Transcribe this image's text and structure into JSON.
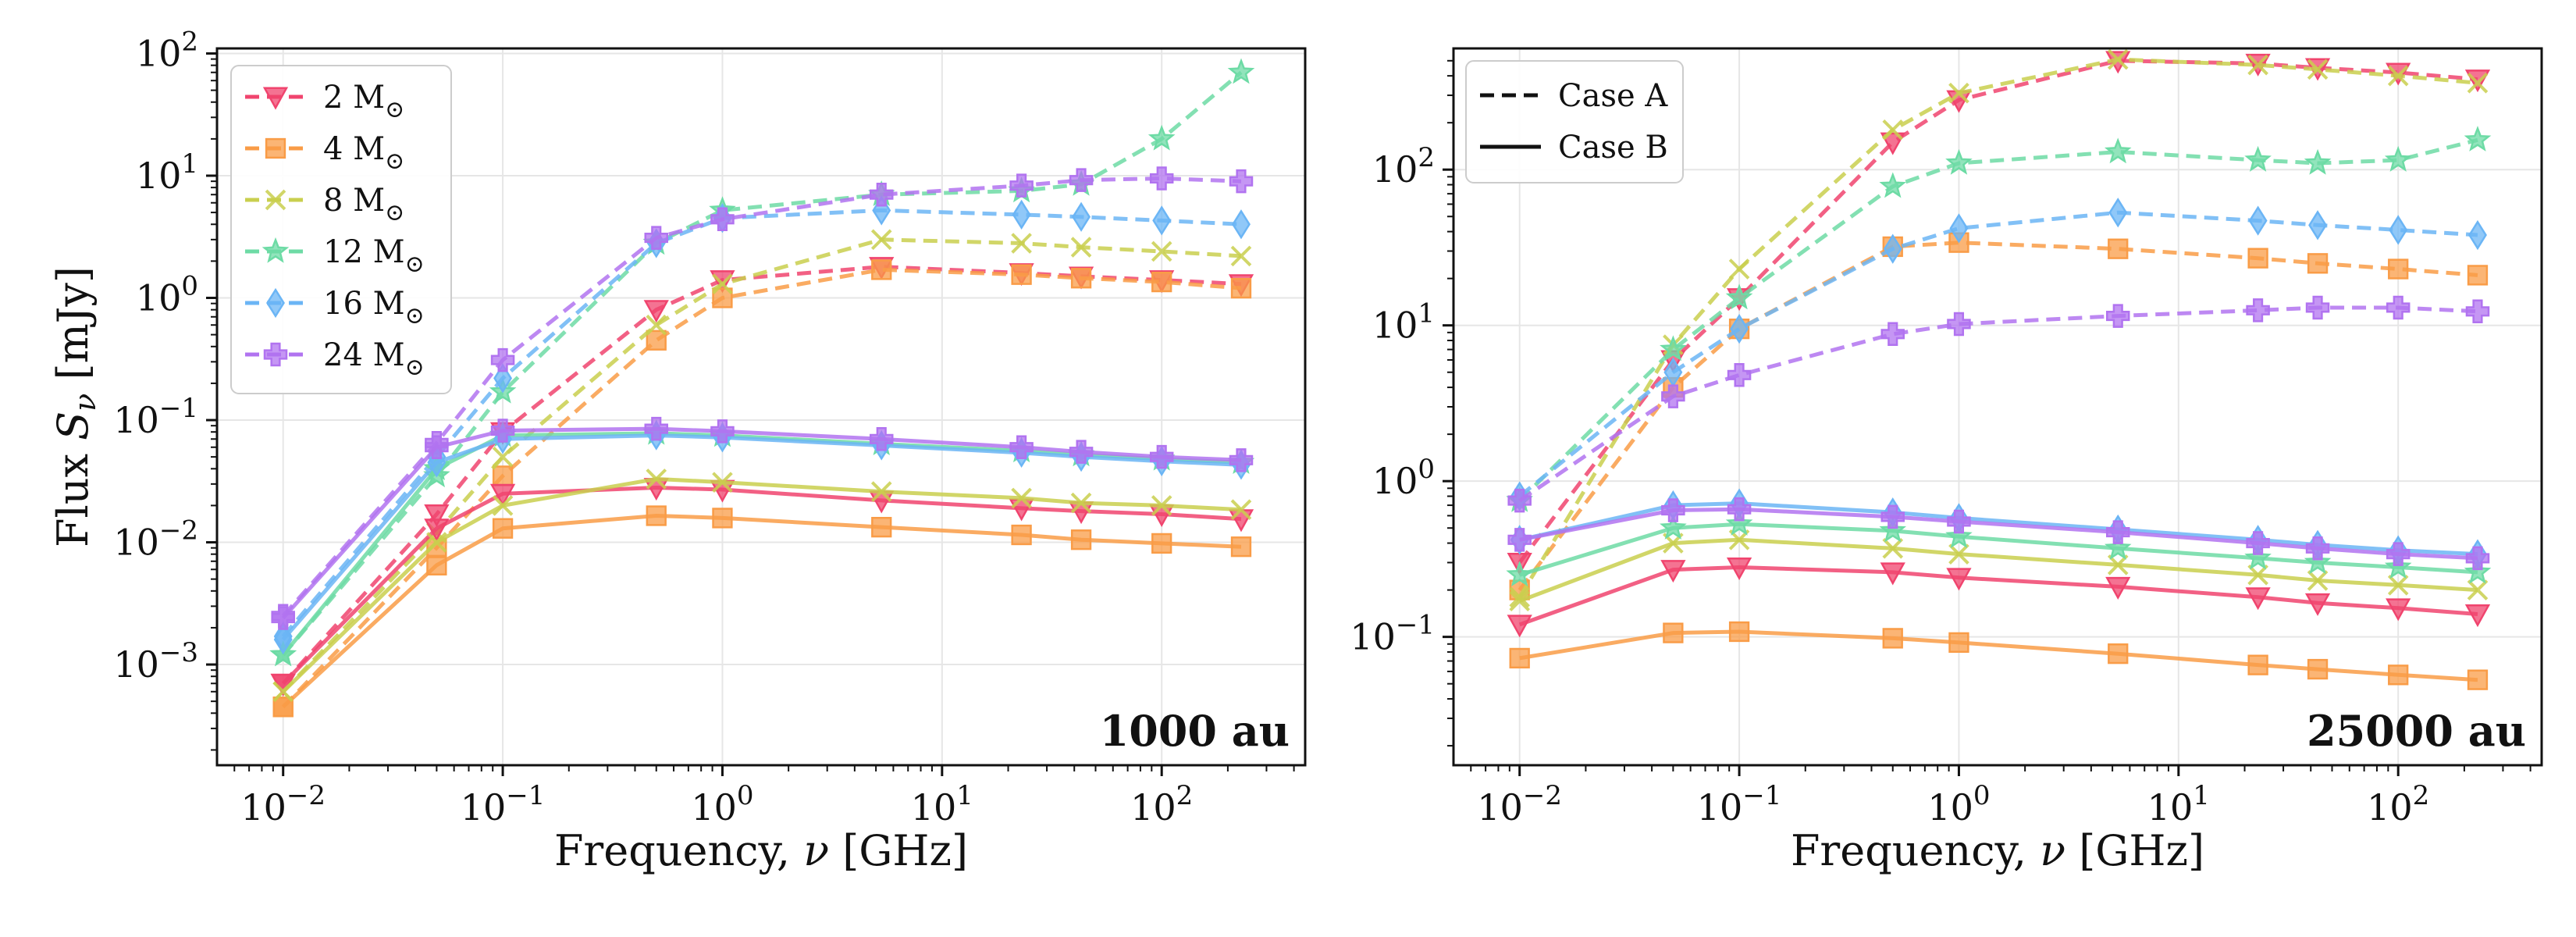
{
  "chart_data": [
    {
      "type": "line",
      "panel_label": "1000 au",
      "xlabel": "Frequency, ν [GHz]",
      "ylabel": "Flux S_ν [mJy]",
      "xscale": "log",
      "yscale": "log",
      "xlim": [
        0.005,
        450
      ],
      "ylim": [
        0.00015,
        110
      ],
      "xticks": [
        "10^-2",
        "10^-1",
        "10^0",
        "10^1",
        "10^2"
      ],
      "yticks": [
        "10^-3",
        "10^-2",
        "10^-1",
        "10^0",
        "10^1",
        "10^2"
      ],
      "grid": true,
      "legend": {
        "position": "top-left",
        "entries": [
          "2 M⊙",
          "4 M⊙",
          "8 M⊙",
          "12 M⊙",
          "16 M⊙",
          "24 M⊙"
        ]
      },
      "x": [
        0.01,
        0.05,
        0.1,
        0.5,
        1,
        5.3,
        23,
        43,
        100,
        230
      ],
      "series": [
        {
          "name": "2 M⊙",
          "case": "Case A",
          "color": "#f0446e",
          "marker": "triangle-down",
          "values": [
            0.0007,
            0.017,
            0.08,
            0.8,
            1.4,
            1.8,
            1.6,
            1.5,
            1.4,
            1.3
          ]
        },
        {
          "name": "4 M⊙",
          "case": "Case A",
          "color": "#f99c47",
          "marker": "square",
          "values": [
            0.00045,
            0.009,
            0.035,
            0.45,
            1.0,
            1.7,
            1.55,
            1.45,
            1.35,
            1.2
          ]
        },
        {
          "name": "8 M⊙",
          "case": "Case A",
          "color": "#c9cf4e",
          "marker": "x",
          "values": [
            0.0006,
            0.012,
            0.05,
            0.6,
            1.3,
            3.0,
            2.8,
            2.6,
            2.4,
            2.2
          ]
        },
        {
          "name": "12 M⊙",
          "case": "Case A",
          "color": "#6ddba5",
          "marker": "star",
          "values": [
            0.0012,
            0.035,
            0.17,
            2.8,
            5.2,
            7.0,
            7.5,
            8.5,
            20,
            70
          ]
        },
        {
          "name": "16 M⊙",
          "case": "Case A",
          "color": "#6bb5f5",
          "marker": "diamond",
          "values": [
            0.0017,
            0.05,
            0.22,
            2.8,
            4.5,
            5.2,
            4.8,
            4.6,
            4.3,
            4.0
          ]
        },
        {
          "name": "24 M⊙",
          "case": "Case A",
          "color": "#b173f0",
          "marker": "plus",
          "values": [
            0.0025,
            0.065,
            0.31,
            3.1,
            4.4,
            7.0,
            8.3,
            9.2,
            9.5,
            9.0
          ]
        },
        {
          "name": "2 M⊙",
          "case": "Case B",
          "color": "#f0446e",
          "marker": "triangle-down",
          "values": [
            0.0007,
            0.013,
            0.025,
            0.028,
            0.027,
            0.022,
            0.019,
            0.018,
            0.017,
            0.0155
          ]
        },
        {
          "name": "4 M⊙",
          "case": "Case B",
          "color": "#f99c47",
          "marker": "square",
          "values": [
            0.00045,
            0.0065,
            0.013,
            0.0165,
            0.0158,
            0.0133,
            0.0115,
            0.0105,
            0.0098,
            0.0092
          ]
        },
        {
          "name": "8 M⊙",
          "case": "Case B",
          "color": "#c9cf4e",
          "marker": "x",
          "values": [
            0.0006,
            0.01,
            0.02,
            0.033,
            0.031,
            0.026,
            0.023,
            0.021,
            0.02,
            0.0185
          ]
        },
        {
          "name": "12 M⊙",
          "case": "Case B",
          "color": "#6ddba5",
          "marker": "star",
          "values": [
            0.0012,
            0.04,
            0.075,
            0.078,
            0.075,
            0.064,
            0.056,
            0.052,
            0.048,
            0.045
          ]
        },
        {
          "name": "16 M⊙",
          "case": "Case B",
          "color": "#6bb5f5",
          "marker": "diamond",
          "values": [
            0.0016,
            0.045,
            0.07,
            0.075,
            0.072,
            0.062,
            0.054,
            0.05,
            0.046,
            0.043
          ]
        },
        {
          "name": "24 M⊙",
          "case": "Case B",
          "color": "#b173f0",
          "marker": "plus",
          "values": [
            0.0024,
            0.06,
            0.082,
            0.085,
            0.081,
            0.07,
            0.06,
            0.055,
            0.05,
            0.047
          ]
        }
      ]
    },
    {
      "type": "line",
      "panel_label": "25000 au",
      "xlabel": "Frequency, ν [GHz]",
      "ylabel": "",
      "xscale": "log",
      "yscale": "log",
      "xlim": [
        0.005,
        450
      ],
      "ylim": [
        0.015,
        600
      ],
      "xticks": [
        "10^-2",
        "10^-1",
        "10^0",
        "10^1",
        "10^2"
      ],
      "yticks": [
        "10^-1",
        "10^0",
        "10^1",
        "10^2"
      ],
      "grid": true,
      "legend": {
        "position": "top-left",
        "entries": [
          "Case A",
          "Case B"
        ]
      },
      "x": [
        0.01,
        0.05,
        0.1,
        0.5,
        1,
        5.3,
        23,
        43,
        100,
        230
      ],
      "series": [
        {
          "name": "2 M⊙",
          "case": "Case A",
          "color": "#f0446e",
          "marker": "triangle-down",
          "values": [
            0.3,
            6.0,
            15,
            150,
            280,
            500,
            480,
            450,
            420,
            380
          ]
        },
        {
          "name": "4 M⊙",
          "case": "Case A",
          "color": "#f99c47",
          "marker": "square",
          "values": [
            0.2,
            4.0,
            9.5,
            32,
            34,
            31,
            27,
            25,
            23,
            21
          ]
        },
        {
          "name": "8 M⊙",
          "case": "Case A",
          "color": "#c9cf4e",
          "marker": "x",
          "values": [
            0.18,
            7.5,
            23,
            180,
            310,
            510,
            470,
            440,
            400,
            360
          ]
        },
        {
          "name": "12 M⊙",
          "case": "Case A",
          "color": "#6ddba5",
          "marker": "star",
          "values": [
            0.75,
            7.0,
            15,
            78,
            110,
            130,
            115,
            110,
            115,
            155
          ]
        },
        {
          "name": "16 M⊙",
          "case": "Case A",
          "color": "#6bb5f5",
          "marker": "diamond",
          "values": [
            0.8,
            5.0,
            9.5,
            31,
            42,
            53,
            47,
            44,
            41,
            38
          ]
        },
        {
          "name": "24 M⊙",
          "case": "Case A",
          "color": "#b173f0",
          "marker": "plus",
          "values": [
            0.75,
            3.5,
            4.8,
            8.8,
            10.2,
            11.5,
            12.5,
            13,
            13,
            12.3
          ]
        },
        {
          "name": "2 M⊙",
          "case": "Case B",
          "color": "#f0446e",
          "marker": "triangle-down",
          "values": [
            0.12,
            0.27,
            0.28,
            0.26,
            0.24,
            0.21,
            0.18,
            0.165,
            0.153,
            0.14
          ]
        },
        {
          "name": "4 M⊙",
          "case": "Case B",
          "color": "#f99c47",
          "marker": "square",
          "values": [
            0.073,
            0.106,
            0.108,
            0.098,
            0.092,
            0.078,
            0.066,
            0.062,
            0.057,
            0.053
          ]
        },
        {
          "name": "8 M⊙",
          "case": "Case B",
          "color": "#c9cf4e",
          "marker": "x",
          "values": [
            0.17,
            0.4,
            0.42,
            0.37,
            0.34,
            0.29,
            0.25,
            0.23,
            0.215,
            0.2
          ]
        },
        {
          "name": "12 M⊙",
          "case": "Case B",
          "color": "#6ddba5",
          "marker": "star",
          "values": [
            0.25,
            0.5,
            0.53,
            0.48,
            0.44,
            0.37,
            0.32,
            0.3,
            0.28,
            0.26
          ]
        },
        {
          "name": "16 M⊙",
          "case": "Case B",
          "color": "#6bb5f5",
          "marker": "diamond",
          "values": [
            0.42,
            0.7,
            0.72,
            0.63,
            0.58,
            0.49,
            0.42,
            0.39,
            0.36,
            0.34
          ]
        },
        {
          "name": "24 M⊙",
          "case": "Case B",
          "color": "#b173f0",
          "marker": "plus",
          "values": [
            0.42,
            0.65,
            0.66,
            0.59,
            0.55,
            0.47,
            0.4,
            0.37,
            0.34,
            0.32
          ]
        }
      ]
    }
  ]
}
